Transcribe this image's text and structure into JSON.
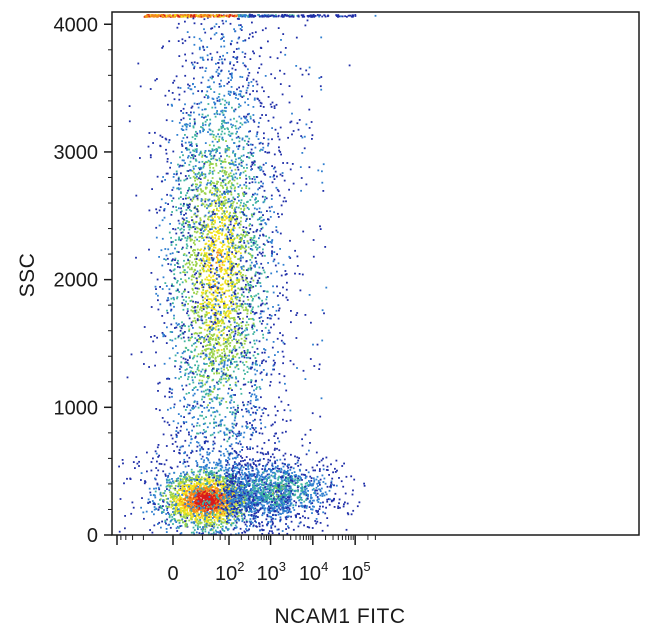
{
  "chart_data": {
    "type": "scatter",
    "xlabel": "NCAM1 FITC",
    "ylabel": "SSC",
    "x_scale": "biexponential (linear near 0, log above)",
    "ylim": [
      0,
      4096
    ],
    "y_ticks": [
      "0",
      "1000",
      "2000",
      "3000",
      "4000"
    ],
    "x_ticks": [
      {
        "value": 0,
        "base": "0",
        "exp": ""
      },
      {
        "value": 100,
        "base": "10",
        "exp": "2"
      },
      {
        "value": 1000,
        "base": "10",
        "exp": "3"
      },
      {
        "value": 10000,
        "base": "10",
        "exp": "4"
      },
      {
        "value": 100000,
        "base": "10",
        "exp": "5"
      }
    ],
    "density_colors": [
      "#1f2ea8",
      "#2f7fd0",
      "#3fb3a0",
      "#9ad24a",
      "#f2e21b",
      "#f28a1b",
      "#d81b1b"
    ],
    "populations": [
      {
        "description": "low-SSC negative population",
        "x_center": 25,
        "y_center": 280,
        "density": "highest"
      },
      {
        "description": "tall negative population",
        "x_center": 50,
        "y_center": 2100,
        "density": "medium-high"
      },
      {
        "description": "NCAM1 positive population",
        "x_center": 1500,
        "y_center": 350,
        "density": "low-medium"
      },
      {
        "description": "saturated SSC events",
        "x_center": 60,
        "y_center": 4070,
        "density": "medium"
      }
    ]
  }
}
